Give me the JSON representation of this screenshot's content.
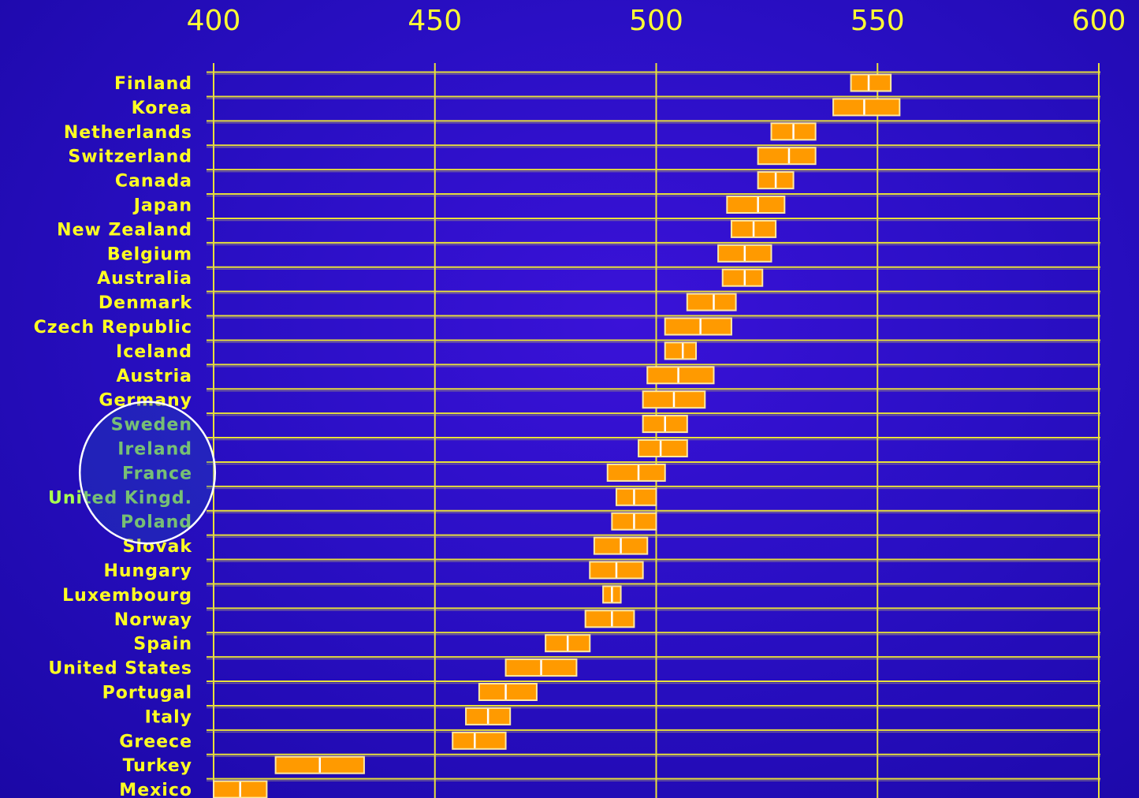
{
  "colors": {
    "background": "#2a0fc4",
    "grid": "#e8e03a",
    "text": "#ffff22",
    "bar": "#ff9a00",
    "bar_border": "#ffe9a0",
    "bar_center": "#ffffff",
    "highlight_text": "#a8ff50",
    "highlight_circle": "#ffffff"
  },
  "chart_data": {
    "type": "bar",
    "title": "",
    "xlabel": "",
    "ylabel": "",
    "xlim": [
      400,
      600
    ],
    "x_ticks": [
      400,
      450,
      500,
      550,
      600
    ],
    "x_tick_labels": [
      "400",
      "450",
      "500",
      "550",
      "600"
    ],
    "x_axis_position": "top",
    "grid": true,
    "series": [
      {
        "categories": [
          "Finland",
          "Korea",
          "Netherlands",
          "Switzerland",
          "Canada",
          "Japan",
          "New Zealand",
          "Belgium",
          "Australia",
          "Denmark",
          "Czech Republic",
          "Iceland",
          "Austria",
          "Germany",
          "Sweden",
          "Ireland",
          "France",
          "United Kingd.",
          "Poland",
          "Slovak",
          "Hungary",
          "Luxembourg",
          "Norway",
          "Spain",
          "United States",
          "Portugal",
          "Italy",
          "Greece",
          "Turkey",
          "Mexico"
        ],
        "low": [
          544,
          540,
          526,
          523,
          523,
          516,
          517,
          514,
          515,
          507,
          502,
          502,
          498,
          497,
          497,
          496,
          489,
          491,
          490,
          486,
          485,
          488,
          484,
          475,
          466,
          460,
          457,
          454,
          414,
          400
        ],
        "mean": [
          548,
          547,
          531,
          530,
          527,
          523,
          522,
          520,
          520,
          513,
          510,
          506,
          505,
          504,
          502,
          501,
          496,
          495,
          495,
          492,
          491,
          490,
          490,
          480,
          474,
          466,
          462,
          459,
          424,
          406
        ],
        "high": [
          553,
          555,
          536,
          536,
          531,
          529,
          527,
          526,
          524,
          518,
          517,
          509,
          513,
          511,
          507,
          507,
          502,
          500,
          500,
          498,
          497,
          492,
          495,
          485,
          482,
          473,
          467,
          466,
          434,
          412
        ]
      }
    ],
    "highlighted_categories": [
      "Sweden",
      "Ireland",
      "France",
      "United Kingd.",
      "Poland"
    ]
  }
}
